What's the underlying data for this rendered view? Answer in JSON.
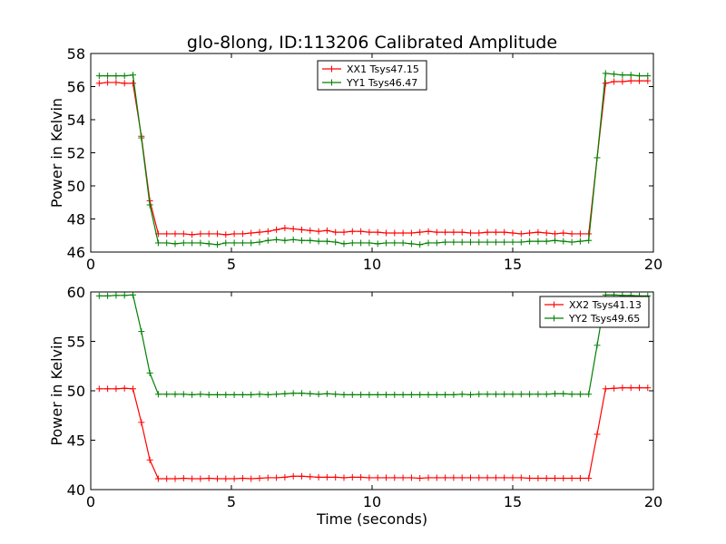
{
  "title": "glo-8long, ID:113206 Calibrated Amplitude",
  "xlabel": "Time (seconds)",
  "colors": {
    "XX": "#ff0000",
    "YY": "#008000"
  },
  "chart_data": [
    {
      "type": "line",
      "ylabel": "Power in Kelvin",
      "xlim": [
        0,
        20
      ],
      "ylim": [
        46,
        58
      ],
      "xticks": [
        0,
        5,
        10,
        15,
        20
      ],
      "yticks": [
        46,
        48,
        50,
        52,
        54,
        56,
        58
      ],
      "grid": false,
      "legend_position": "top-center",
      "x": [
        0.3,
        0.6,
        0.9,
        1.2,
        1.5,
        1.8,
        2.1,
        2.4,
        2.7,
        3.0,
        3.3,
        3.6,
        3.9,
        4.2,
        4.5,
        4.8,
        5.1,
        5.4,
        5.7,
        6.0,
        6.3,
        6.6,
        6.9,
        7.2,
        7.5,
        7.8,
        8.1,
        8.4,
        8.7,
        9.0,
        9.3,
        9.6,
        9.9,
        10.2,
        10.5,
        10.8,
        11.1,
        11.4,
        11.7,
        12.0,
        12.3,
        12.6,
        12.9,
        13.2,
        13.5,
        13.8,
        14.1,
        14.4,
        14.7,
        15.0,
        15.3,
        15.6,
        15.9,
        16.2,
        16.5,
        16.8,
        17.1,
        17.4,
        17.7,
        18.0,
        18.3,
        18.6,
        18.9,
        19.2,
        19.5,
        19.8
      ],
      "series": [
        {
          "name": "XX1 Tsys47.15",
          "color": "#ff0000",
          "values": [
            56.2,
            56.25,
            56.25,
            56.2,
            56.2,
            53.0,
            49.1,
            47.1,
            47.1,
            47.1,
            47.1,
            47.05,
            47.1,
            47.1,
            47.1,
            47.05,
            47.1,
            47.1,
            47.15,
            47.2,
            47.25,
            47.35,
            47.45,
            47.4,
            47.35,
            47.3,
            47.25,
            47.3,
            47.2,
            47.2,
            47.25,
            47.25,
            47.2,
            47.2,
            47.15,
            47.15,
            47.15,
            47.15,
            47.2,
            47.25,
            47.2,
            47.2,
            47.2,
            47.2,
            47.15,
            47.15,
            47.2,
            47.2,
            47.2,
            47.15,
            47.1,
            47.15,
            47.2,
            47.15,
            47.1,
            47.15,
            47.1,
            47.1,
            47.1,
            51.7,
            56.2,
            56.3,
            56.3,
            56.35,
            56.35,
            56.35
          ]
        },
        {
          "name": "YY1 Tsys46.47",
          "color": "#008000",
          "values": [
            56.65,
            56.65,
            56.65,
            56.65,
            56.7,
            52.9,
            48.85,
            46.55,
            46.55,
            46.5,
            46.55,
            46.55,
            46.55,
            46.5,
            46.45,
            46.55,
            46.55,
            46.55,
            46.55,
            46.6,
            46.7,
            46.75,
            46.7,
            46.75,
            46.7,
            46.7,
            46.65,
            46.65,
            46.6,
            46.5,
            46.55,
            46.55,
            46.55,
            46.5,
            46.55,
            46.55,
            46.55,
            46.5,
            46.45,
            46.55,
            46.55,
            46.6,
            46.6,
            46.6,
            46.6,
            46.6,
            46.6,
            46.6,
            46.6,
            46.6,
            46.6,
            46.65,
            46.65,
            46.65,
            46.7,
            46.65,
            46.6,
            46.65,
            46.7,
            51.7,
            56.8,
            56.75,
            56.7,
            56.7,
            56.65,
            56.65
          ]
        }
      ]
    },
    {
      "type": "line",
      "ylabel": "Power in Kelvin",
      "xlabel": "Time (seconds)",
      "xlim": [
        0,
        20
      ],
      "ylim": [
        40,
        60
      ],
      "xticks": [
        0,
        5,
        10,
        15,
        20
      ],
      "yticks": [
        40,
        45,
        50,
        55,
        60
      ],
      "grid": false,
      "legend_position": "top-right",
      "x": [
        0.3,
        0.6,
        0.9,
        1.2,
        1.5,
        1.8,
        2.1,
        2.4,
        2.7,
        3.0,
        3.3,
        3.6,
        3.9,
        4.2,
        4.5,
        4.8,
        5.1,
        5.4,
        5.7,
        6.0,
        6.3,
        6.6,
        6.9,
        7.2,
        7.5,
        7.8,
        8.1,
        8.4,
        8.7,
        9.0,
        9.3,
        9.6,
        9.9,
        10.2,
        10.5,
        10.8,
        11.1,
        11.4,
        11.7,
        12.0,
        12.3,
        12.6,
        12.9,
        13.2,
        13.5,
        13.8,
        14.1,
        14.4,
        14.7,
        15.0,
        15.3,
        15.6,
        15.9,
        16.2,
        16.5,
        16.8,
        17.1,
        17.4,
        17.7,
        18.0,
        18.3,
        18.6,
        18.9,
        19.2,
        19.5,
        19.8
      ],
      "series": [
        {
          "name": "XX2 Tsys41.13",
          "color": "#ff0000",
          "values": [
            50.2,
            50.2,
            50.2,
            50.25,
            50.2,
            46.8,
            43.0,
            41.1,
            41.1,
            41.1,
            41.15,
            41.1,
            41.1,
            41.15,
            41.1,
            41.1,
            41.1,
            41.15,
            41.1,
            41.15,
            41.2,
            41.2,
            41.25,
            41.35,
            41.35,
            41.3,
            41.25,
            41.25,
            41.25,
            41.2,
            41.25,
            41.25,
            41.2,
            41.2,
            41.2,
            41.2,
            41.2,
            41.2,
            41.15,
            41.2,
            41.2,
            41.2,
            41.2,
            41.2,
            41.2,
            41.2,
            41.2,
            41.2,
            41.2,
            41.2,
            41.2,
            41.15,
            41.15,
            41.15,
            41.15,
            41.15,
            41.15,
            41.15,
            41.15,
            45.6,
            50.2,
            50.25,
            50.3,
            50.3,
            50.3,
            50.3
          ]
        },
        {
          "name": "YY2 Tsys49.65",
          "color": "#008000",
          "values": [
            59.6,
            59.6,
            59.65,
            59.65,
            59.7,
            56.0,
            51.8,
            49.65,
            49.65,
            49.65,
            49.65,
            49.6,
            49.65,
            49.6,
            49.6,
            49.6,
            49.6,
            49.6,
            49.6,
            49.65,
            49.6,
            49.65,
            49.7,
            49.75,
            49.75,
            49.7,
            49.65,
            49.7,
            49.65,
            49.6,
            49.6,
            49.6,
            49.6,
            49.6,
            49.6,
            49.6,
            49.6,
            49.6,
            49.6,
            49.6,
            49.6,
            49.6,
            49.6,
            49.65,
            49.6,
            49.65,
            49.65,
            49.65,
            49.65,
            49.65,
            49.65,
            49.65,
            49.65,
            49.65,
            49.7,
            49.7,
            49.65,
            49.65,
            49.65,
            54.6,
            59.7,
            59.7,
            59.65,
            59.65,
            59.6,
            59.6
          ]
        }
      ]
    }
  ]
}
